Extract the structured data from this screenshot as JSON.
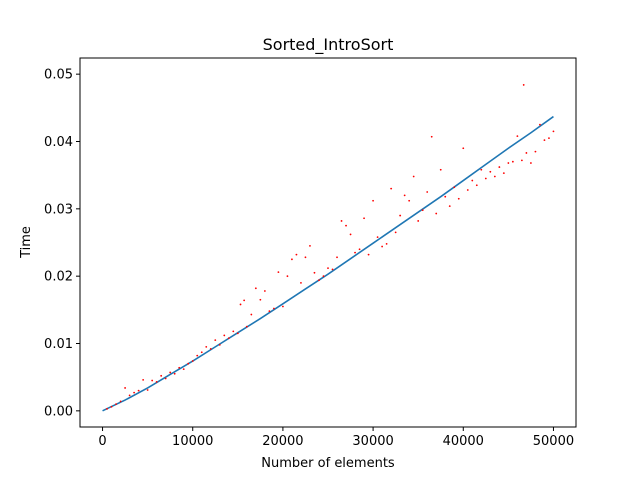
{
  "chart_data": {
    "type": "scatter",
    "title": "Sorted_IntroSort",
    "xlabel": "Number of elements",
    "ylabel": "Time",
    "xlim": [
      -2500,
      52500
    ],
    "ylim": [
      -0.0024,
      0.0524
    ],
    "x_ticks": [
      0,
      10000,
      20000,
      30000,
      40000,
      50000
    ],
    "y_ticks": [
      0.0,
      0.01,
      0.02,
      0.03,
      0.04,
      0.05
    ],
    "x_tick_labels": [
      "0",
      "10000",
      "20000",
      "30000",
      "40000",
      "50000"
    ],
    "y_tick_labels": [
      "0.00",
      "0.01",
      "0.02",
      "0.03",
      "0.04",
      "0.05"
    ],
    "grid": false,
    "colors": {
      "points": "#ff0000",
      "fit": "#1f77b4"
    },
    "series": [
      {
        "kind": "points",
        "x": [
          500,
          1000,
          1500,
          2000,
          2500,
          3000,
          3500,
          4000,
          4500,
          5000,
          5500,
          6000,
          6500,
          7000,
          7500,
          8000,
          8500,
          9000,
          9500,
          10000,
          10500,
          11000,
          11500,
          12000,
          12500,
          13000,
          13500,
          14000,
          14500,
          15000,
          15300,
          15700,
          16000,
          16500,
          17000,
          17500,
          18000,
          18500,
          19000,
          19500,
          20000,
          20500,
          21000,
          21500,
          22000,
          22500,
          23000,
          23500,
          24000,
          24500,
          25000,
          25500,
          26000,
          26500,
          27000,
          27500,
          28000,
          28500,
          29000,
          29500,
          30000,
          30500,
          31000,
          31500,
          32000,
          32500,
          33000,
          33500,
          34000,
          34500,
          35000,
          35500,
          36000,
          36500,
          37000,
          37500,
          38000,
          38500,
          39000,
          39500,
          40000,
          40500,
          41000,
          41500,
          42000,
          42500,
          43000,
          43500,
          44000,
          44500,
          45000,
          45500,
          46000,
          46500,
          46700,
          47000,
          47500,
          48000,
          48500,
          49000,
          49500,
          50000
        ],
        "y": [
          0.0003,
          0.0006,
          0.001,
          0.0014,
          0.0034,
          0.0023,
          0.0027,
          0.003,
          0.0046,
          0.0031,
          0.0045,
          0.0043,
          0.0052,
          0.0048,
          0.0057,
          0.0055,
          0.0064,
          0.0062,
          0.007,
          0.0074,
          0.0082,
          0.0087,
          0.0095,
          0.0092,
          0.0105,
          0.0098,
          0.0112,
          0.0108,
          0.0118,
          0.0115,
          0.0158,
          0.0164,
          0.0125,
          0.0143,
          0.0182,
          0.0165,
          0.0178,
          0.0148,
          0.0152,
          0.0206,
          0.0155,
          0.02,
          0.0225,
          0.0232,
          0.019,
          0.0228,
          0.0245,
          0.0205,
          0.0194,
          0.02,
          0.0212,
          0.021,
          0.0228,
          0.0282,
          0.0275,
          0.0262,
          0.0235,
          0.024,
          0.0286,
          0.0232,
          0.0312,
          0.0258,
          0.0244,
          0.0248,
          0.033,
          0.0265,
          0.029,
          0.032,
          0.0312,
          0.0348,
          0.0282,
          0.0298,
          0.0325,
          0.0407,
          0.0293,
          0.0358,
          0.0318,
          0.0304,
          0.0332,
          0.0315,
          0.039,
          0.0328,
          0.0342,
          0.0335,
          0.0358,
          0.0345,
          0.0355,
          0.0348,
          0.0362,
          0.0353,
          0.0368,
          0.037,
          0.0408,
          0.0372,
          0.0484,
          0.0383,
          0.0368,
          0.0385,
          0.0425,
          0.0402,
          0.0405,
          0.0415
        ]
      },
      {
        "kind": "fit",
        "x": [
          0,
          2500,
          5000,
          7500,
          10000,
          12500,
          15000,
          17500,
          20000,
          22500,
          25000,
          27500,
          30000,
          32500,
          35000,
          37500,
          40000,
          42500,
          45000,
          47500,
          50000
        ],
        "y": [
          0.0,
          0.0016,
          0.0034,
          0.0054,
          0.0074,
          0.0095,
          0.0116,
          0.0137,
          0.0159,
          0.0181,
          0.0203,
          0.0226,
          0.0249,
          0.0272,
          0.0295,
          0.0318,
          0.0342,
          0.0366,
          0.039,
          0.0413,
          0.0437
        ]
      }
    ]
  }
}
